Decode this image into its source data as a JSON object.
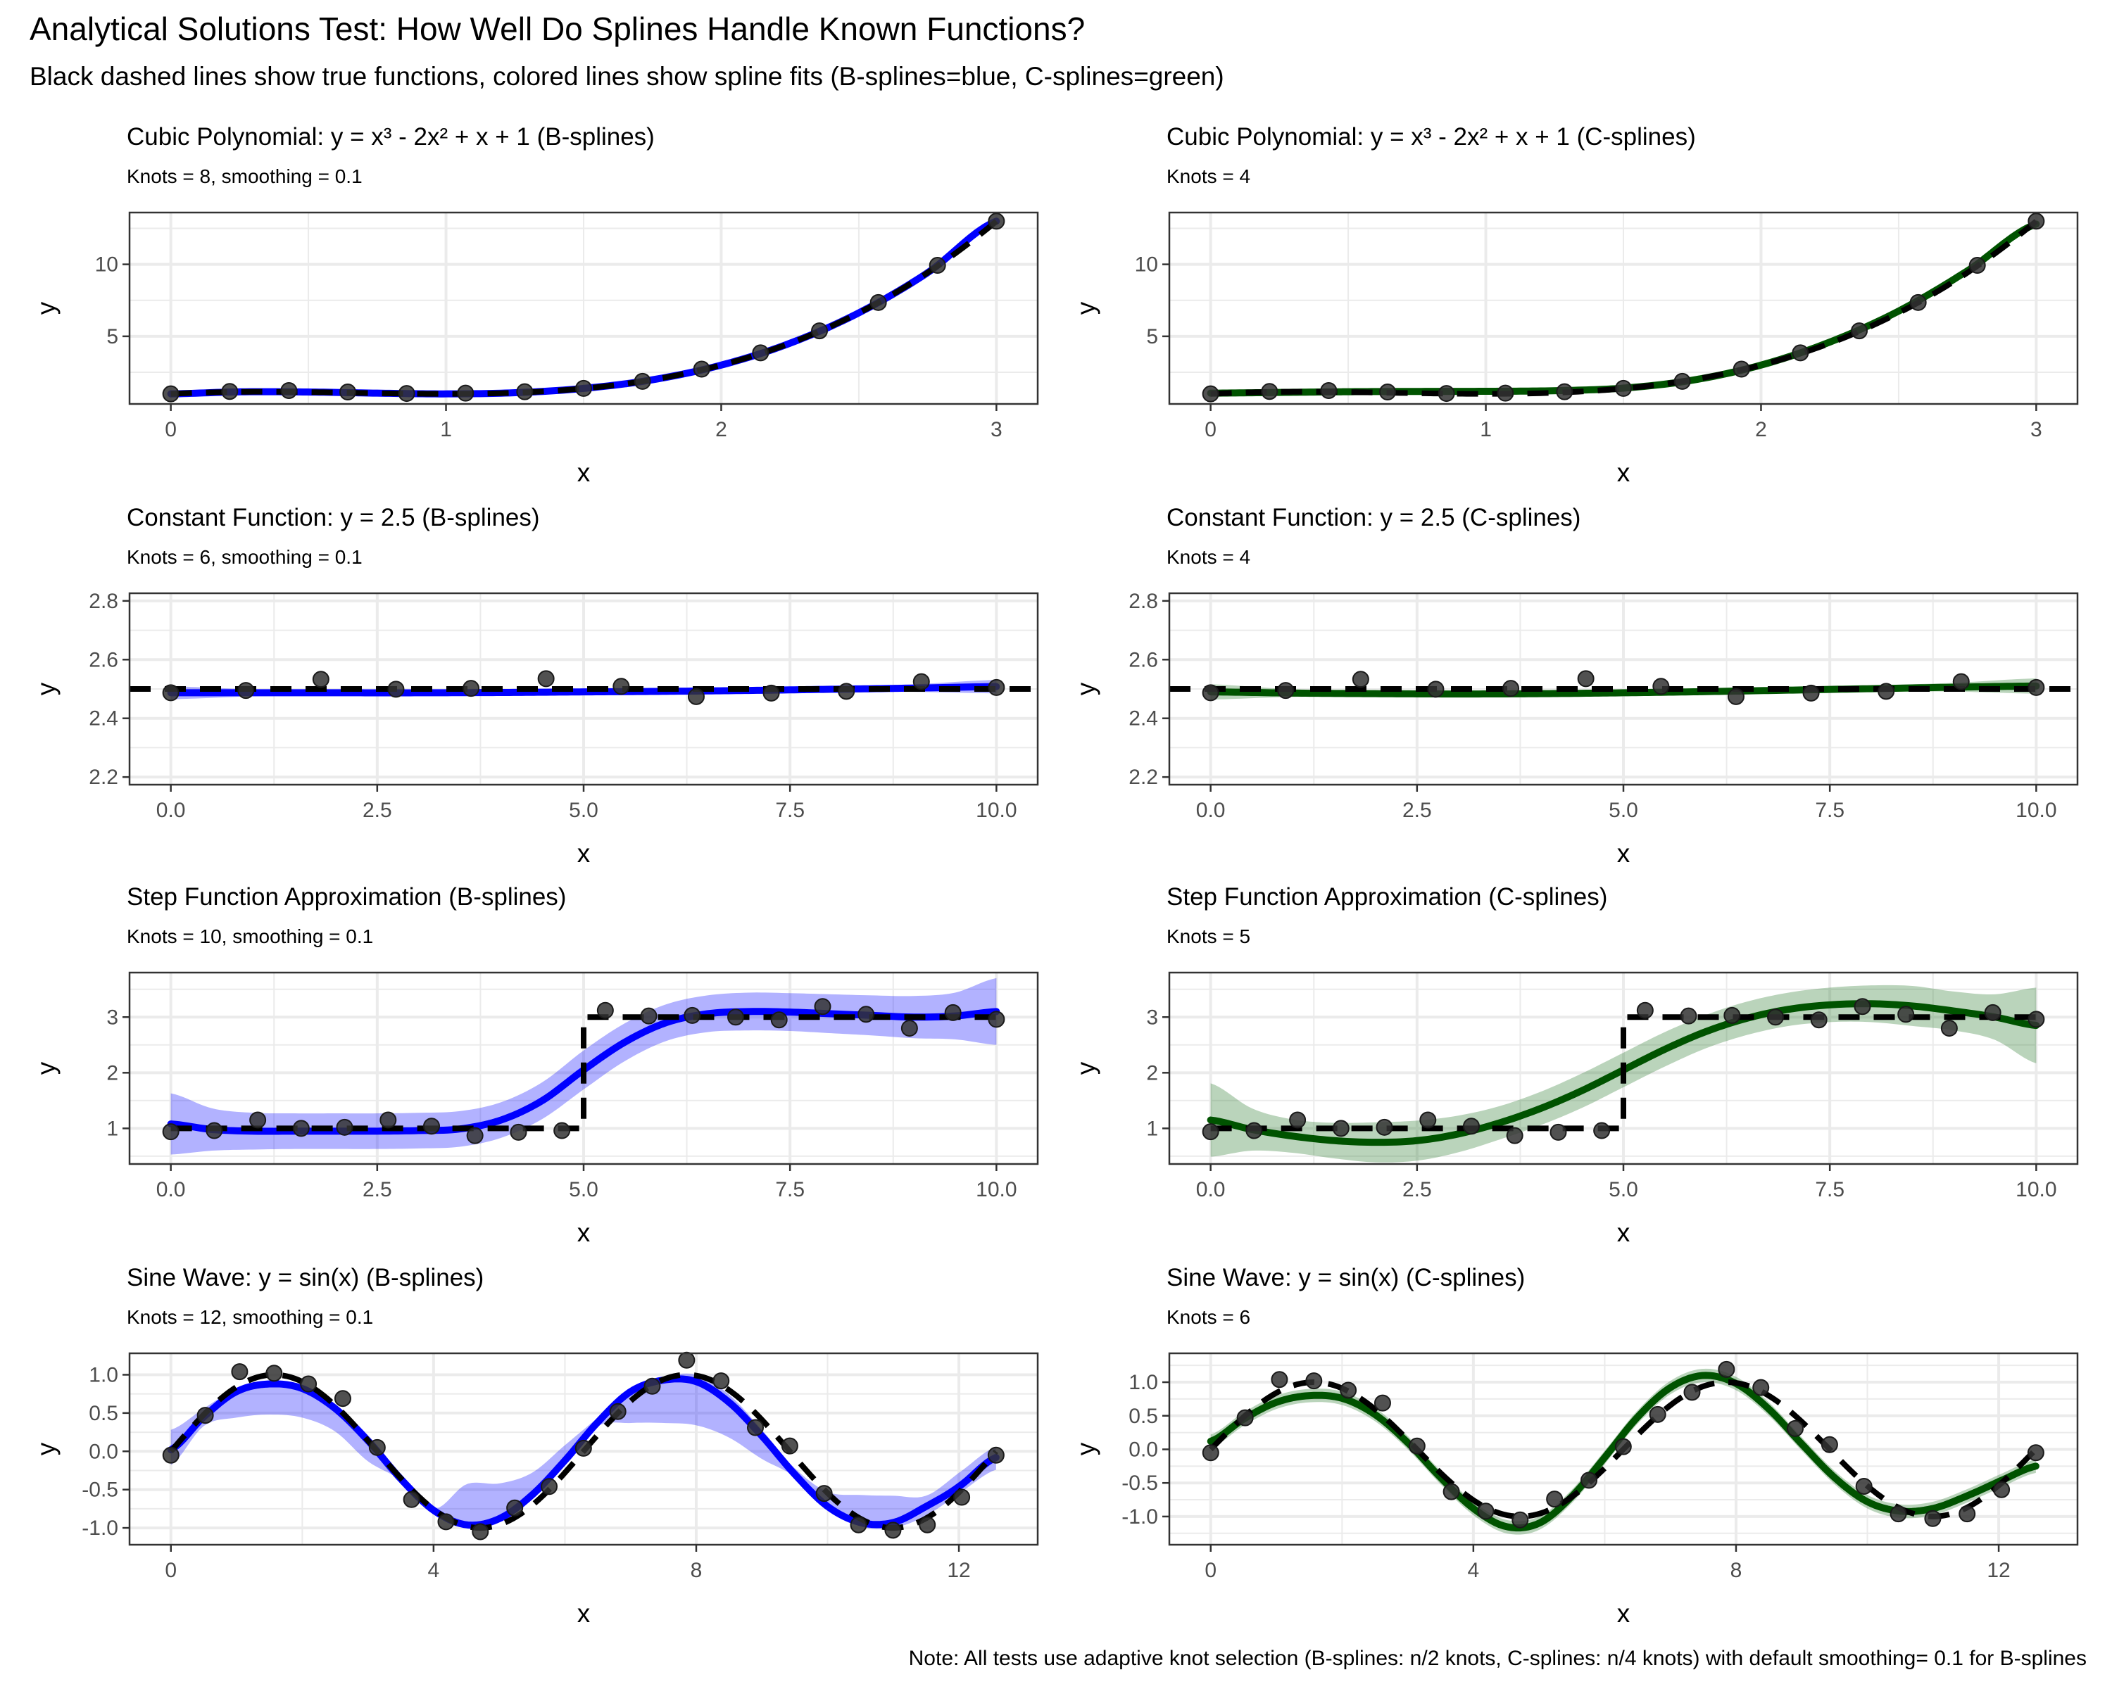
{
  "figure": {
    "title": "Analytical Solutions Test: How Well Do Splines Handle Known Functions?",
    "subtitle": "Black dashed lines show true functions, colored lines show spline fits (B-splines=blue, C-splines=green)",
    "caption": "Note: All tests use adaptive knot selection (B-splines: n/2 knots, C-splines: n/4 knots) with default smoothing= 0.1 for B-splines"
  },
  "colors": {
    "bspline_line": "#0000ff",
    "bspline_band": "#0000ff",
    "cspline_line": "#005300",
    "cspline_band": "#2e7d32",
    "true_function": "#000000",
    "points": "#333333",
    "grid": "#ebebeb",
    "panel_border": "#333333"
  },
  "chart_data": [
    {
      "id": "cubic-b",
      "type": "line",
      "title": "Cubic Polynomial: y = x³ - 2x² + x + 1 (B-splines)",
      "subtitle": "Knots = 8, smoothing = 0.1",
      "method": "B-splines",
      "xlabel": "x",
      "ylabel": "y",
      "xlim": [
        -0.15,
        3.15
      ],
      "ylim": [
        0.3,
        13.6
      ],
      "xticks": [
        0,
        1,
        2,
        3
      ],
      "xtick_labels": [
        "0",
        "1",
        "2",
        "3"
      ],
      "yticks": [
        5,
        10
      ],
      "ytick_labels": [
        "5",
        "10"
      ],
      "yminor": [
        2.5,
        7.5,
        12.5
      ],
      "xminor": [
        0.5,
        1.5,
        2.5
      ],
      "true_function": "cubic",
      "points": {
        "x": [
          0,
          0.214,
          0.429,
          0.643,
          0.857,
          1.071,
          1.286,
          1.5,
          1.714,
          1.929,
          2.143,
          2.357,
          2.571,
          2.786,
          3.0
        ],
        "y": [
          1.0,
          1.17,
          1.23,
          1.13,
          1.03,
          1.05,
          1.15,
          1.38,
          1.87,
          2.72,
          3.85,
          5.38,
          7.35,
          9.93,
          13.0
        ]
      },
      "fit": {
        "x": [
          0,
          0.25,
          0.5,
          0.75,
          1.0,
          1.25,
          1.5,
          1.75,
          2.0,
          2.25,
          2.5,
          2.75,
          3.0
        ],
        "y": [
          1.0,
          1.14,
          1.13,
          1.05,
          1.0,
          1.08,
          1.38,
          1.98,
          3.0,
          4.52,
          6.63,
          9.42,
          13.0
        ],
        "band": 0.08
      }
    },
    {
      "id": "cubic-c",
      "type": "line",
      "title": "Cubic Polynomial: y = x³ - 2x² + x + 1 (C-splines)",
      "subtitle": "Knots = 4",
      "method": "C-splines",
      "xlabel": "x",
      "ylabel": "y",
      "xlim": [
        -0.15,
        3.15
      ],
      "ylim": [
        0.3,
        13.6
      ],
      "xticks": [
        0,
        1,
        2,
        3
      ],
      "xtick_labels": [
        "0",
        "1",
        "2",
        "3"
      ],
      "yticks": [
        5,
        10
      ],
      "ytick_labels": [
        "5",
        "10"
      ],
      "yminor": [
        2.5,
        7.5,
        12.5
      ],
      "xminor": [
        0.5,
        1.5,
        2.5
      ],
      "true_function": "cubic",
      "points": {
        "x": [
          0,
          0.214,
          0.429,
          0.643,
          0.857,
          1.071,
          1.286,
          1.5,
          1.714,
          1.929,
          2.143,
          2.357,
          2.571,
          2.786,
          3.0
        ],
        "y": [
          1.0,
          1.17,
          1.23,
          1.13,
          1.03,
          1.05,
          1.15,
          1.38,
          1.87,
          2.72,
          3.85,
          5.38,
          7.35,
          9.93,
          13.0
        ]
      },
      "fit": {
        "x": [
          0,
          0.25,
          0.5,
          0.75,
          1.0,
          1.25,
          1.5,
          1.75,
          2.0,
          2.25,
          2.5,
          2.75,
          3.0
        ],
        "y": [
          1.05,
          1.1,
          1.15,
          1.17,
          1.18,
          1.22,
          1.4,
          1.95,
          3.0,
          4.6,
          6.75,
          9.55,
          12.8
        ],
        "band": 0.12
      }
    },
    {
      "id": "constant-b",
      "type": "line",
      "title": "Constant Function: y = 2.5 (B-splines)",
      "subtitle": "Knots = 6, smoothing = 0.1",
      "method": "B-splines",
      "xlabel": "x",
      "ylabel": "y",
      "xlim": [
        -0.5,
        10.5
      ],
      "ylim": [
        2.174,
        2.826
      ],
      "xticks": [
        0,
        2.5,
        5,
        7.5,
        10
      ],
      "xtick_labels": [
        "0.0",
        "2.5",
        "5.0",
        "7.5",
        "10.0"
      ],
      "yticks": [
        2.2,
        2.4,
        2.6,
        2.8
      ],
      "ytick_labels": [
        "2.2",
        "2.4",
        "2.6",
        "2.8"
      ],
      "yminor": [
        2.3,
        2.5,
        2.7
      ],
      "xminor": [
        1.25,
        3.75,
        6.25,
        8.75
      ],
      "true_function": "constant",
      "points": {
        "x": [
          0,
          0.909,
          1.818,
          2.727,
          3.636,
          4.545,
          5.455,
          6.364,
          7.273,
          8.182,
          9.091,
          10.0
        ],
        "y": [
          2.487,
          2.495,
          2.533,
          2.499,
          2.502,
          2.535,
          2.509,
          2.474,
          2.486,
          2.492,
          2.525,
          2.505
        ]
      },
      "fit": {
        "x": [
          0,
          1,
          2,
          3,
          4,
          5,
          6,
          7,
          8,
          9,
          10
        ],
        "y": [
          2.487,
          2.487,
          2.487,
          2.487,
          2.488,
          2.49,
          2.492,
          2.495,
          2.499,
          2.503,
          2.508
        ],
        "band": [
          0.022,
          0.012,
          0.009,
          0.008,
          0.008,
          0.008,
          0.008,
          0.008,
          0.009,
          0.013,
          0.023
        ]
      }
    },
    {
      "id": "constant-c",
      "type": "line",
      "title": "Constant Function: y = 2.5 (C-splines)",
      "subtitle": "Knots = 4",
      "method": "C-splines",
      "xlabel": "x",
      "ylabel": "y",
      "xlim": [
        -0.5,
        10.5
      ],
      "ylim": [
        2.174,
        2.826
      ],
      "xticks": [
        0,
        2.5,
        5,
        7.5,
        10
      ],
      "xtick_labels": [
        "0.0",
        "2.5",
        "5.0",
        "7.5",
        "10.0"
      ],
      "yticks": [
        2.2,
        2.4,
        2.6,
        2.8
      ],
      "ytick_labels": [
        "2.2",
        "2.4",
        "2.6",
        "2.8"
      ],
      "yminor": [
        2.3,
        2.5,
        2.7
      ],
      "xminor": [
        1.25,
        3.75,
        6.25,
        8.75
      ],
      "true_function": "constant",
      "points": {
        "x": [
          0,
          0.909,
          1.818,
          2.727,
          3.636,
          4.545,
          5.455,
          6.364,
          7.273,
          8.182,
          9.091,
          10.0
        ],
        "y": [
          2.487,
          2.495,
          2.533,
          2.499,
          2.502,
          2.535,
          2.509,
          2.474,
          2.486,
          2.492,
          2.525,
          2.505
        ]
      },
      "fit": {
        "x": [
          0,
          1,
          2,
          3,
          4,
          5,
          6,
          7,
          8,
          9,
          10
        ],
        "y": [
          2.49,
          2.486,
          2.484,
          2.483,
          2.484,
          2.487,
          2.491,
          2.496,
          2.501,
          2.506,
          2.51
        ],
        "band": [
          0.026,
          0.013,
          0.011,
          0.011,
          0.01,
          0.009,
          0.009,
          0.009,
          0.011,
          0.015,
          0.026
        ]
      }
    },
    {
      "id": "step-b",
      "type": "line",
      "title": "Step Function Approximation (B-splines)",
      "subtitle": "Knots = 10, smoothing = 0.1",
      "method": "B-splines",
      "xlabel": "x",
      "ylabel": "y",
      "xlim": [
        -0.5,
        10.5
      ],
      "ylim": [
        0.36,
        3.8
      ],
      "xticks": [
        0,
        2.5,
        5,
        7.5,
        10
      ],
      "xtick_labels": [
        "0.0",
        "2.5",
        "5.0",
        "7.5",
        "10.0"
      ],
      "yticks": [
        1,
        2,
        3
      ],
      "ytick_labels": [
        "1",
        "2",
        "3"
      ],
      "yminor": [
        0.5,
        1.5,
        2.5,
        3.5
      ],
      "xminor": [
        1.25,
        3.75,
        6.25,
        8.75
      ],
      "true_function": "step",
      "points": {
        "x": [
          0,
          0.526,
          1.053,
          1.579,
          2.105,
          2.632,
          3.158,
          3.684,
          4.211,
          4.737,
          5.263,
          5.789,
          6.316,
          6.842,
          7.368,
          7.895,
          8.421,
          8.947,
          9.474,
          10.0
        ],
        "y": [
          0.94,
          0.96,
          1.15,
          1.0,
          1.02,
          1.15,
          1.04,
          0.87,
          0.93,
          0.96,
          3.12,
          3.02,
          3.03,
          3.0,
          2.95,
          3.19,
          3.05,
          2.8,
          3.08,
          2.96
        ]
      },
      "fit": {
        "x": [
          0,
          0.5,
          1,
          1.5,
          2,
          2.5,
          3,
          3.5,
          4,
          4.5,
          5,
          5.5,
          6,
          6.5,
          7,
          7.5,
          8,
          8.5,
          9,
          9.5,
          10
        ],
        "y": [
          1.08,
          0.98,
          0.95,
          0.95,
          0.95,
          0.95,
          0.96,
          0.99,
          1.15,
          1.5,
          2.05,
          2.55,
          2.9,
          3.06,
          3.1,
          3.09,
          3.06,
          3.03,
          3.0,
          3.02,
          3.1
        ],
        "band": [
          0.55,
          0.38,
          0.33,
          0.32,
          0.32,
          0.32,
          0.32,
          0.32,
          0.32,
          0.33,
          0.35,
          0.34,
          0.33,
          0.33,
          0.34,
          0.34,
          0.35,
          0.36,
          0.38,
          0.42,
          0.6
        ]
      }
    },
    {
      "id": "step-c",
      "type": "line",
      "title": "Step Function Approximation (C-splines)",
      "subtitle": "Knots = 5",
      "method": "C-splines",
      "xlabel": "x",
      "ylabel": "y",
      "xlim": [
        -0.5,
        10.5
      ],
      "ylim": [
        0.36,
        3.8
      ],
      "xticks": [
        0,
        2.5,
        5,
        7.5,
        10
      ],
      "xtick_labels": [
        "0.0",
        "2.5",
        "5.0",
        "7.5",
        "10.0"
      ],
      "yticks": [
        1,
        2,
        3
      ],
      "ytick_labels": [
        "1",
        "2",
        "3"
      ],
      "yminor": [
        0.5,
        1.5,
        2.5,
        3.5
      ],
      "xminor": [
        1.25,
        3.75,
        6.25,
        8.75
      ],
      "true_function": "step",
      "points": {
        "x": [
          0,
          0.526,
          1.053,
          1.579,
          2.105,
          2.632,
          3.158,
          3.684,
          4.211,
          4.737,
          5.263,
          5.789,
          6.316,
          6.842,
          7.368,
          7.895,
          8.421,
          8.947,
          9.474,
          10.0
        ],
        "y": [
          0.94,
          0.96,
          1.15,
          1.0,
          1.02,
          1.15,
          1.04,
          0.87,
          0.93,
          0.96,
          3.12,
          3.02,
          3.03,
          3.0,
          2.95,
          3.19,
          3.05,
          2.8,
          3.08,
          2.96
        ]
      },
      "fit": {
        "x": [
          0,
          0.5,
          1,
          1.5,
          2,
          2.5,
          3,
          3.5,
          4,
          4.5,
          5,
          5.5,
          6,
          6.5,
          7,
          7.5,
          8,
          8.5,
          9,
          9.5,
          10
        ],
        "y": [
          1.15,
          0.98,
          0.86,
          0.78,
          0.75,
          0.78,
          0.9,
          1.1,
          1.36,
          1.68,
          2.05,
          2.42,
          2.74,
          2.98,
          3.14,
          3.22,
          3.24,
          3.2,
          3.11,
          3.0,
          2.85
        ],
        "band": [
          0.66,
          0.38,
          0.3,
          0.32,
          0.36,
          0.36,
          0.33,
          0.3,
          0.3,
          0.31,
          0.31,
          0.31,
          0.3,
          0.3,
          0.3,
          0.31,
          0.33,
          0.36,
          0.35,
          0.41,
          0.68
        ]
      }
    },
    {
      "id": "sine-b",
      "type": "line",
      "title": "Sine Wave: y = sin(x) (B-splines)",
      "subtitle": "Knots = 12, smoothing = 0.1",
      "method": "B-splines",
      "xlabel": "x",
      "ylabel": "y",
      "xlim": [
        -0.63,
        13.2
      ],
      "ylim": [
        -1.22,
        1.28
      ],
      "xticks": [
        0,
        4,
        8,
        12
      ],
      "xtick_labels": [
        "0",
        "4",
        "8",
        "12"
      ],
      "yticks": [
        -1,
        -0.5,
        0,
        0.5,
        1
      ],
      "ytick_labels": [
        "-1.0",
        "-0.5",
        "0.0",
        "0.5",
        "1.0"
      ],
      "yminor": [
        -0.75,
        -0.25,
        0.25,
        0.75
      ],
      "xminor": [
        2,
        6,
        10
      ],
      "true_function": "sine",
      "points": {
        "x": [
          0,
          0.524,
          1.047,
          1.571,
          2.094,
          2.618,
          3.142,
          3.665,
          4.189,
          4.712,
          5.236,
          5.76,
          6.283,
          6.807,
          7.33,
          7.854,
          8.378,
          8.901,
          9.425,
          9.948,
          10.472,
          10.996,
          11.519,
          12.043,
          12.566
        ],
        "y": [
          -0.05,
          0.47,
          1.04,
          1.02,
          0.88,
          0.69,
          0.05,
          -0.63,
          -0.92,
          -1.05,
          -0.74,
          -0.46,
          0.04,
          0.52,
          0.85,
          1.19,
          0.92,
          0.31,
          0.07,
          -0.55,
          -0.96,
          -1.03,
          -0.96,
          -0.6,
          -0.05
        ]
      },
      "fit": {
        "x": [
          0,
          0.5,
          1,
          1.5,
          2,
          2.5,
          3,
          3.5,
          4,
          4.5,
          5,
          5.5,
          6,
          6.5,
          7,
          7.5,
          8,
          8.5,
          9,
          9.5,
          10,
          10.5,
          11,
          11.5,
          12,
          12.566
        ],
        "y": [
          0.02,
          0.45,
          0.78,
          0.88,
          0.82,
          0.56,
          0.14,
          -0.36,
          -0.77,
          -0.96,
          -0.88,
          -0.57,
          -0.12,
          0.38,
          0.78,
          0.93,
          0.91,
          0.64,
          0.2,
          -0.3,
          -0.72,
          -0.93,
          -0.93,
          -0.72,
          -0.46,
          -0.08
        ],
        "band_lower": [
          -0.18,
          0.33,
          0.44,
          0.48,
          0.44,
          0.26,
          -0.13,
          -0.37,
          -0.71,
          -0.91,
          -0.82,
          -0.54,
          -0.1,
          0.33,
          0.37,
          0.37,
          0.34,
          0.18,
          -0.1,
          -0.33,
          -0.72,
          -0.98,
          -1.0,
          -0.84,
          -0.55,
          -0.24
        ],
        "band_upper": [
          0.28,
          0.56,
          0.82,
          0.92,
          0.86,
          0.62,
          0.18,
          -0.33,
          -0.75,
          -0.43,
          -0.42,
          -0.28,
          0.08,
          0.44,
          0.82,
          0.97,
          1.0,
          0.74,
          0.28,
          -0.22,
          -0.53,
          -0.57,
          -0.58,
          -0.58,
          -0.28,
          0.06
        ]
      }
    },
    {
      "id": "sine-c",
      "type": "line",
      "title": "Sine Wave: y = sin(x) (C-splines)",
      "subtitle": "Knots = 6",
      "method": "C-splines",
      "xlabel": "x",
      "ylabel": "y",
      "xlim": [
        -0.63,
        13.2
      ],
      "ylim": [
        -1.42,
        1.43
      ],
      "xticks": [
        0,
        4,
        8,
        12
      ],
      "xtick_labels": [
        "0",
        "4",
        "8",
        "12"
      ],
      "yticks": [
        -1,
        -0.5,
        0,
        0.5,
        1
      ],
      "ytick_labels": [
        "-1.0",
        "-0.5",
        "0.0",
        "0.5",
        "1.0"
      ],
      "yminor": [
        -1.25,
        -0.75,
        -0.25,
        0.25,
        0.75,
        1.25
      ],
      "xminor": [
        2,
        6,
        10
      ],
      "true_function": "sine",
      "points": {
        "x": [
          0,
          0.524,
          1.047,
          1.571,
          2.094,
          2.618,
          3.142,
          3.665,
          4.189,
          4.712,
          5.236,
          5.76,
          6.283,
          6.807,
          7.33,
          7.854,
          8.378,
          8.901,
          9.425,
          9.948,
          10.472,
          10.996,
          11.519,
          12.043,
          12.566
        ],
        "y": [
          -0.05,
          0.47,
          1.04,
          1.02,
          0.88,
          0.69,
          0.05,
          -0.63,
          -0.92,
          -1.05,
          -0.74,
          -0.46,
          0.04,
          0.52,
          0.85,
          1.19,
          0.92,
          0.31,
          0.07,
          -0.55,
          -0.96,
          -1.03,
          -0.96,
          -0.6,
          -0.05
        ]
      },
      "fit": {
        "x": [
          0,
          0.5,
          1,
          1.5,
          2,
          2.5,
          3,
          3.5,
          4,
          4.5,
          5,
          5.5,
          6,
          6.5,
          7,
          7.5,
          8,
          8.5,
          9,
          9.5,
          10,
          10.5,
          11,
          11.5,
          12,
          12.566
        ],
        "y": [
          0.12,
          0.45,
          0.7,
          0.8,
          0.76,
          0.52,
          0.1,
          -0.42,
          -0.88,
          -1.15,
          -1.1,
          -0.7,
          -0.12,
          0.48,
          0.92,
          1.1,
          0.98,
          0.6,
          0.08,
          -0.42,
          -0.78,
          -0.92,
          -0.88,
          -0.7,
          -0.48,
          -0.25
        ],
        "band": 0.1
      }
    }
  ]
}
